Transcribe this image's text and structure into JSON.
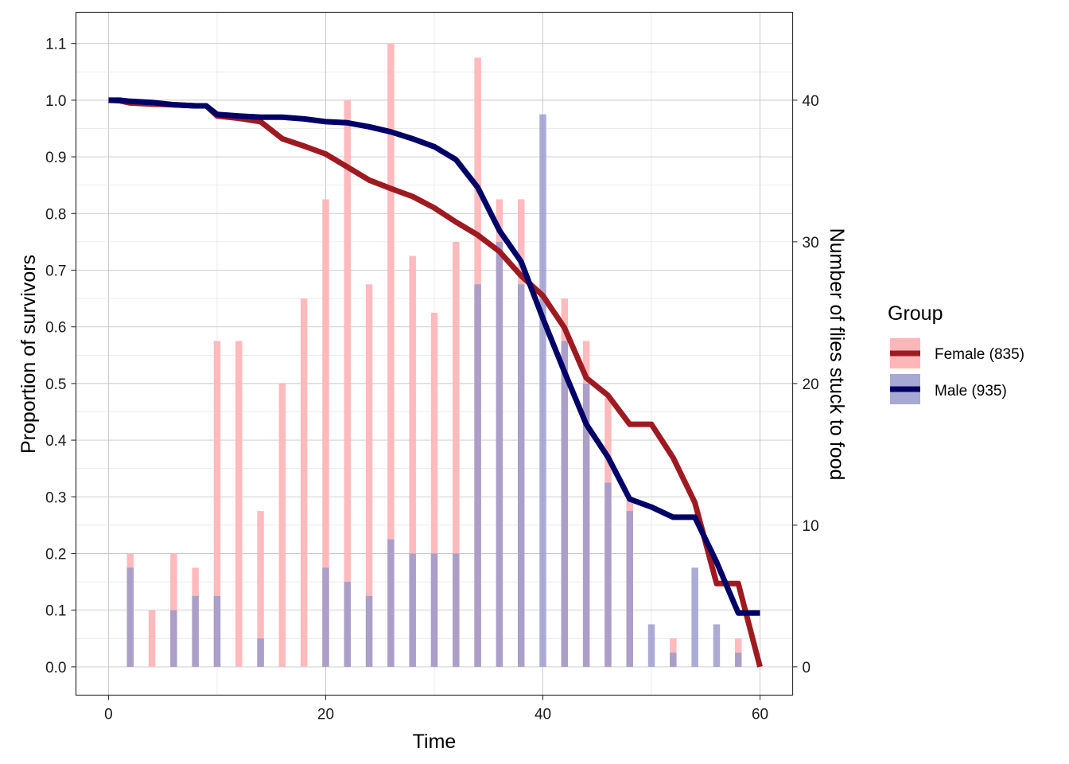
{
  "chart_data": {
    "type": "bar+line",
    "xlabel": "Time",
    "ylabel": "Proportion of survivors",
    "y2label": "Number of flies stuck to food",
    "xlim": [
      -3,
      63
    ],
    "ylim": [
      -0.05,
      1.155
    ],
    "y2lim": [
      -2,
      46.2
    ],
    "x_ticks": [
      0,
      20,
      40,
      60
    ],
    "y_ticks": [
      0.0,
      0.1,
      0.2,
      0.3,
      0.4,
      0.5,
      0.6,
      0.7,
      0.8,
      0.9,
      1.0,
      1.1
    ],
    "y_tick_labels": [
      "0.0",
      "0.1",
      "0.2",
      "0.3",
      "0.4",
      "0.5",
      "0.6",
      "0.7",
      "0.8",
      "0.9",
      "1.0",
      "1.1"
    ],
    "y2_ticks": [
      0,
      10,
      20,
      30,
      40
    ],
    "grid": true,
    "legend": {
      "title": "Group",
      "placement": "right",
      "entries": [
        "Female (835)",
        "Male (935)"
      ]
    },
    "colors": {
      "female_line": "#9e1a21",
      "female_bar": "#ffb6b9",
      "male_line": "#000066",
      "male_bar": "#9999cc"
    },
    "bars": {
      "x": [
        2,
        4,
        6,
        8,
        10,
        12,
        14,
        16,
        18,
        20,
        22,
        24,
        26,
        28,
        30,
        32,
        34,
        36,
        38,
        40,
        42,
        44,
        46,
        48,
        50,
        52,
        54,
        56,
        58
      ],
      "series": [
        {
          "name": "Female (835)",
          "values": [
            8,
            4,
            8,
            7,
            23,
            23,
            11,
            20,
            26,
            33,
            40,
            27,
            44,
            29,
            25,
            30,
            43,
            33,
            33,
            0,
            26,
            23,
            19,
            12,
            0,
            2,
            0,
            0,
            2
          ]
        },
        {
          "name": "Male (935)",
          "values": [
            7,
            0,
            4,
            5,
            5,
            0,
            2,
            0,
            0,
            7,
            6,
            5,
            9,
            8,
            8,
            8,
            27,
            30,
            27,
            39,
            23,
            20,
            13,
            11,
            3,
            1,
            7,
            3,
            1
          ]
        }
      ]
    },
    "lines": [
      {
        "name": "Female (835)",
        "x": [
          0,
          1,
          2,
          4,
          6,
          8,
          9,
          10,
          12,
          14,
          16,
          18,
          20,
          22,
          24,
          26,
          28,
          30,
          32,
          34,
          36,
          38,
          40,
          42,
          44,
          46,
          48,
          50,
          52,
          54,
          56,
          58,
          60
        ],
        "y": [
          1.0,
          0.999,
          0.995,
          0.993,
          0.992,
          0.99,
          0.99,
          0.972,
          0.968,
          0.962,
          0.932,
          0.919,
          0.905,
          0.882,
          0.859,
          0.844,
          0.83,
          0.81,
          0.785,
          0.762,
          0.733,
          0.69,
          0.655,
          0.598,
          0.51,
          0.479,
          0.428,
          0.428,
          0.369,
          0.29,
          0.147,
          0.147,
          0.0
        ]
      },
      {
        "name": "Male (935)",
        "x": [
          0,
          1,
          2,
          4,
          6,
          8,
          9,
          10,
          12,
          14,
          16,
          18,
          20,
          22,
          24,
          26,
          28,
          30,
          32,
          34,
          36,
          38,
          40,
          42,
          44,
          46,
          48,
          50,
          52,
          54,
          56,
          58,
          60
        ],
        "y": [
          1.0,
          1.0,
          0.998,
          0.996,
          0.992,
          0.99,
          0.99,
          0.975,
          0.972,
          0.97,
          0.97,
          0.967,
          0.962,
          0.96,
          0.953,
          0.944,
          0.932,
          0.918,
          0.895,
          0.846,
          0.77,
          0.715,
          0.615,
          0.52,
          0.428,
          0.37,
          0.296,
          0.282,
          0.264,
          0.264,
          0.185,
          0.095,
          0.095
        ]
      }
    ]
  }
}
